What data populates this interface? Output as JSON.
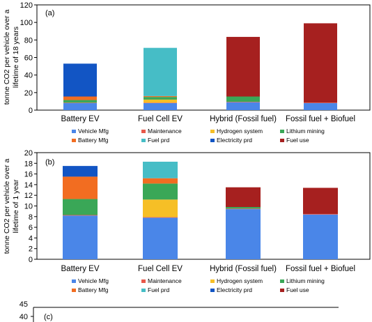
{
  "chart_data": [
    {
      "panel": "(a)",
      "type": "bar",
      "stacked": true,
      "ylabel": "tonne CO2 per vehicle over a lifetime of 18 years",
      "ylabel_lines": [
        "tonne CO2 per vehicle over a",
        "lifetime of 18 years"
      ],
      "ylim": [
        0,
        120
      ],
      "yticks": [
        0,
        20,
        40,
        60,
        80,
        100,
        120
      ],
      "categories": [
        "Battery EV",
        "Fuel Cell EV",
        "Hybrid (Fossil fuel)",
        "Fossil fuel + Biofuel"
      ],
      "series": [
        {
          "name": "Vehicle Mfg",
          "color": "#4a86e8",
          "values": [
            8,
            8,
            9,
            8
          ]
        },
        {
          "name": "Maintenance",
          "color": "#e8584a",
          "values": [
            0.5,
            0.5,
            0.5,
            0.5
          ]
        },
        {
          "name": "Hydrogen system",
          "color": "#f6bf26",
          "values": [
            0,
            3.5,
            0,
            0
          ]
        },
        {
          "name": "Lithium mining",
          "color": "#3aa757",
          "values": [
            3,
            3,
            6,
            0
          ]
        },
        {
          "name": "Battery Mfg",
          "color": "#f26d21",
          "values": [
            4,
            1,
            0,
            0
          ]
        },
        {
          "name": "Fuel prd",
          "color": "#46bdc6",
          "values": [
            0,
            55,
            0,
            0
          ]
        },
        {
          "name": "Electricity prd",
          "color": "#1255c4",
          "values": [
            37.5,
            0,
            0,
            0
          ]
        },
        {
          "name": "Fuel use",
          "color": "#a6201f",
          "values": [
            0,
            0,
            68,
            90.5
          ]
        }
      ],
      "legend_placement": "bottom",
      "grid": false
    },
    {
      "panel": "(b)",
      "type": "bar",
      "stacked": true,
      "ylabel": "tonne CO2 per vehicle over a lifetime of 1 year",
      "ylabel_lines": [
        "tonne CO2 per vehicle over a",
        "lifetime of 1 year"
      ],
      "ylim": [
        0,
        20
      ],
      "yticks": [
        0,
        2,
        4,
        6,
        8,
        10,
        12,
        14,
        16,
        18,
        20
      ],
      "categories": [
        "Battery EV",
        "Fuel Cell EV",
        "Hybrid (Fossil fuel)",
        "Fossil fuel + Biofuel"
      ],
      "series": [
        {
          "name": "Vehicle Mfg",
          "color": "#4a86e8",
          "values": [
            8.2,
            7.8,
            9.4,
            8.4
          ]
        },
        {
          "name": "Maintenance",
          "color": "#e8584a",
          "values": [
            0.1,
            0.1,
            0.1,
            0.1
          ]
        },
        {
          "name": "Hydrogen system",
          "color": "#f6bf26",
          "values": [
            0,
            3.3,
            0,
            0
          ]
        },
        {
          "name": "Lithium mining",
          "color": "#3aa757",
          "values": [
            3.0,
            3.0,
            0.3,
            0
          ]
        },
        {
          "name": "Battery Mfg",
          "color": "#f26d21",
          "values": [
            4.2,
            1.0,
            0,
            0
          ]
        },
        {
          "name": "Fuel prd",
          "color": "#46bdc6",
          "values": [
            0,
            3.1,
            0,
            0
          ]
        },
        {
          "name": "Electricity prd",
          "color": "#1255c4",
          "values": [
            2.0,
            0,
            0,
            0
          ]
        },
        {
          "name": "Fuel use",
          "color": "#a6201f",
          "values": [
            0,
            0,
            3.7,
            4.9
          ]
        }
      ],
      "legend_placement": "bottom",
      "grid": false
    },
    {
      "panel": "(c)",
      "type": "bar",
      "partially_visible": true,
      "ylim_visible": [
        40,
        45
      ],
      "yticks_visible": [
        40,
        45
      ]
    }
  ]
}
